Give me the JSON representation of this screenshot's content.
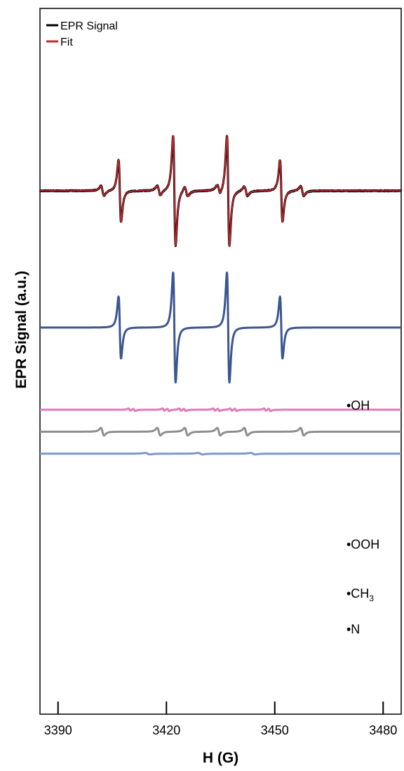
{
  "chart_data": {
    "type": "line",
    "title": "",
    "xlabel": "H (G)",
    "ylabel": "EPR Signal (a.u.)",
    "xlim": [
      3385,
      3485
    ],
    "xticks": [
      3390,
      3420,
      3450,
      3480
    ],
    "y_ticks_shown": false,
    "grid": false,
    "legend": {
      "placement": "top-left",
      "entries": [
        {
          "label": "EPR Signal",
          "color": "#000000"
        },
        {
          "label": "Fit",
          "color": "#c0282d"
        }
      ]
    },
    "series": [
      {
        "name": "EPR Signal",
        "role": "experimental",
        "color": "#000000",
        "baseline": 0,
        "noise": true,
        "lines": [
          {
            "center": 3407.1,
            "amp": 9.0,
            "width": 0.6
          },
          {
            "center": 3422.2,
            "amp": 16.0,
            "width": 0.6
          },
          {
            "center": 3437.1,
            "amp": 16.0,
            "width": 0.6
          },
          {
            "center": 3451.8,
            "amp": 9.0,
            "width": 0.6
          },
          {
            "center": 3402.3,
            "amp": 1.4,
            "width": 0.75
          },
          {
            "center": 3417.9,
            "amp": 1.4,
            "width": 0.75
          },
          {
            "center": 3425.5,
            "amp": 1.4,
            "width": 0.75
          },
          {
            "center": 3434.5,
            "amp": 1.4,
            "width": 0.75
          },
          {
            "center": 3442.0,
            "amp": 1.4,
            "width": 0.75
          },
          {
            "center": 3457.6,
            "amp": 1.4,
            "width": 0.75
          }
        ]
      },
      {
        "name": "Fit",
        "role": "fit",
        "color": "#c0282d",
        "baseline": 0,
        "lines": [
          {
            "center": 3407.1,
            "amp": 9.0,
            "width": 0.6
          },
          {
            "center": 3422.2,
            "amp": 16.0,
            "width": 0.6
          },
          {
            "center": 3437.1,
            "amp": 16.0,
            "width": 0.6
          },
          {
            "center": 3451.8,
            "amp": 9.0,
            "width": 0.6
          },
          {
            "center": 3402.3,
            "amp": 1.4,
            "width": 0.75
          },
          {
            "center": 3417.9,
            "amp": 1.4,
            "width": 0.75
          },
          {
            "center": 3425.5,
            "amp": 1.4,
            "width": 0.75
          },
          {
            "center": 3434.5,
            "amp": 1.4,
            "width": 0.75
          },
          {
            "center": 3442.0,
            "amp": 1.4,
            "width": 0.75
          },
          {
            "center": 3457.6,
            "amp": 1.4,
            "width": 0.75
          }
        ]
      },
      {
        "name": "•OH",
        "role": "component",
        "color": "#3b5791",
        "baseline": -16.8,
        "lines": [
          {
            "center": 3407.1,
            "amp": 9.0,
            "width": 0.6
          },
          {
            "center": 3422.2,
            "amp": 16.0,
            "width": 0.6
          },
          {
            "center": 3437.1,
            "amp": 16.0,
            "width": 0.6
          },
          {
            "center": 3451.8,
            "amp": 9.0,
            "width": 0.6
          }
        ]
      },
      {
        "name": "•OOH",
        "role": "component",
        "color": "#e07ab8",
        "baseline": -26.9,
        "lines": [
          {
            "center": 3409.8,
            "amp": 0.35,
            "width": 0.5
          },
          {
            "center": 3411.1,
            "amp": 0.35,
            "width": 0.5
          },
          {
            "center": 3419.2,
            "amp": 0.35,
            "width": 0.5
          },
          {
            "center": 3420.5,
            "amp": 0.35,
            "width": 0.5
          },
          {
            "center": 3423.8,
            "amp": 0.35,
            "width": 0.5
          },
          {
            "center": 3425.1,
            "amp": 0.35,
            "width": 0.5
          },
          {
            "center": 3433.2,
            "amp": 0.35,
            "width": 0.5
          },
          {
            "center": 3434.5,
            "amp": 0.35,
            "width": 0.5
          },
          {
            "center": 3437.9,
            "amp": 0.35,
            "width": 0.5
          },
          {
            "center": 3439.2,
            "amp": 0.35,
            "width": 0.5
          },
          {
            "center": 3447.3,
            "amp": 0.35,
            "width": 0.5
          },
          {
            "center": 3448.6,
            "amp": 0.35,
            "width": 0.5
          }
        ]
      },
      {
        "name": "•CH3",
        "role": "component",
        "color": "#8e8e8e",
        "baseline": -29.6,
        "lines": [
          {
            "center": 3402.3,
            "amp": 1.1,
            "width": 0.75
          },
          {
            "center": 3417.9,
            "amp": 1.1,
            "width": 0.75
          },
          {
            "center": 3425.5,
            "amp": 1.1,
            "width": 0.75
          },
          {
            "center": 3434.5,
            "amp": 1.1,
            "width": 0.75
          },
          {
            "center": 3442.0,
            "amp": 1.1,
            "width": 0.75
          },
          {
            "center": 3457.6,
            "amp": 1.1,
            "width": 0.75
          }
        ]
      },
      {
        "name": "•N",
        "role": "component",
        "color": "#7f97cf",
        "baseline": -32.3,
        "lines": [
          {
            "center": 3414.8,
            "amp": 0.22,
            "width": 1.1
          },
          {
            "center": 3429.4,
            "amp": 0.22,
            "width": 1.1
          },
          {
            "center": 3444.0,
            "amp": 0.22,
            "width": 1.1
          }
        ]
      }
    ],
    "annotations": [
      {
        "text": "•OH",
        "series": "•OH"
      },
      {
        "text": "•OOH",
        "series": "•OOH"
      },
      {
        "text": "•CH3",
        "series": "•CH3"
      },
      {
        "text": "•N",
        "series": "•N"
      }
    ]
  }
}
